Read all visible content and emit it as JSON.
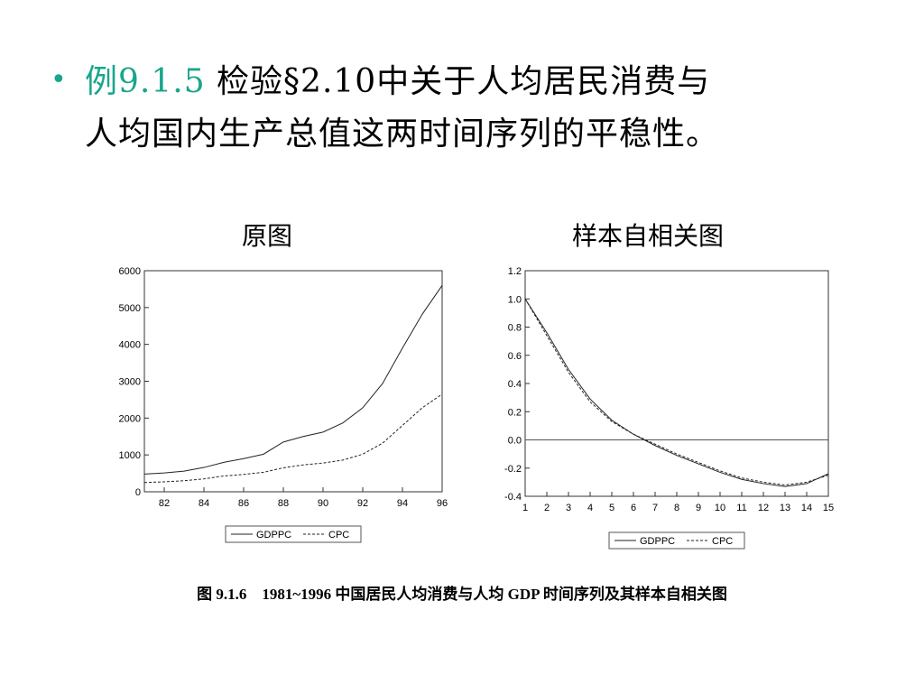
{
  "slide": {
    "bullet": "•",
    "example_label": "例9.1.5",
    "line1_rest": " 检验§2.10中关于人均居民消费与",
    "line2": "人均国内生产总值这两时间序列的平稳性。",
    "caption": "图 9.1.6　1981~1996 中国居民人均消费与人均 GDP 时间序列及其样本自相关图",
    "left_title": "原图",
    "right_title": "样本自相关图"
  },
  "chart_data": [
    {
      "type": "line",
      "title": "原图",
      "xlabel": "",
      "ylabel": "",
      "x": [
        1981,
        1982,
        1983,
        1984,
        1985,
        1986,
        1987,
        1988,
        1989,
        1990,
        1991,
        1992,
        1993,
        1994,
        1995,
        1996
      ],
      "xticks": [
        "82",
        "84",
        "86",
        "88",
        "90",
        "92",
        "94",
        "96"
      ],
      "yticks": [
        "0",
        "1000",
        "2000",
        "3000",
        "4000",
        "5000",
        "6000"
      ],
      "ylim": [
        0,
        6000
      ],
      "legend": "bottom-center",
      "series": [
        {
          "name": "GDPPC",
          "style": "solid",
          "values": [
            480,
            510,
            560,
            660,
            800,
            900,
            1020,
            1350,
            1500,
            1620,
            1870,
            2280,
            2940,
            3900,
            4820,
            5600
          ]
        },
        {
          "name": "CPC",
          "style": "dashed",
          "values": [
            250,
            270,
            300,
            350,
            430,
            470,
            530,
            650,
            730,
            780,
            860,
            1020,
            1320,
            1800,
            2280,
            2650
          ]
        }
      ]
    },
    {
      "type": "line",
      "title": "样本自相关图",
      "xlabel": "",
      "ylabel": "",
      "x": [
        1,
        2,
        3,
        4,
        5,
        6,
        7,
        8,
        9,
        10,
        11,
        12,
        13,
        14,
        15
      ],
      "xticks": [
        "1",
        "2",
        "3",
        "4",
        "5",
        "6",
        "7",
        "8",
        "9",
        "10",
        "11",
        "12",
        "13",
        "14",
        "15"
      ],
      "yticks": [
        "-0.4",
        "-0.2",
        "0.0",
        "0.2",
        "0.4",
        "0.6",
        "0.8",
        "1.0",
        "1.2"
      ],
      "ylim": [
        -0.4,
        1.2
      ],
      "zero_line": true,
      "legend": "bottom-center",
      "series": [
        {
          "name": "GDPPC",
          "style": "solid",
          "values": [
            1.0,
            0.76,
            0.5,
            0.29,
            0.14,
            0.04,
            -0.04,
            -0.11,
            -0.17,
            -0.23,
            -0.28,
            -0.31,
            -0.33,
            -0.31,
            -0.24
          ]
        },
        {
          "name": "CPC",
          "style": "dashed",
          "values": [
            1.0,
            0.74,
            0.48,
            0.27,
            0.13,
            0.04,
            -0.03,
            -0.1,
            -0.16,
            -0.22,
            -0.27,
            -0.3,
            -0.32,
            -0.3,
            -0.25
          ]
        }
      ]
    }
  ]
}
